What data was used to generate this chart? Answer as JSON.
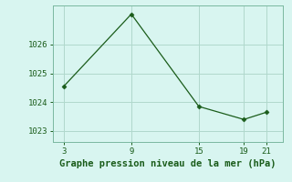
{
  "x": [
    3,
    9,
    15,
    19,
    21
  ],
  "y": [
    1024.55,
    1027.05,
    1023.85,
    1023.4,
    1023.65
  ],
  "line_color": "#1a5c1a",
  "marker_color": "#1a5c1a",
  "background_color": "#d8f5f0",
  "grid_color": "#b0d8cc",
  "xlabel": "Graphe pression niveau de la mer (hPa)",
  "xlabel_color": "#1a5c1a",
  "ylabel_ticks": [
    1023,
    1024,
    1025,
    1026
  ],
  "xticks": [
    3,
    9,
    15,
    19,
    21
  ],
  "ylim": [
    1022.62,
    1027.35
  ],
  "xlim": [
    2.0,
    22.5
  ],
  "figsize": [
    3.2,
    2.0
  ],
  "dpi": 100,
  "tick_fontsize": 6.5,
  "xlabel_fontsize": 7.5
}
